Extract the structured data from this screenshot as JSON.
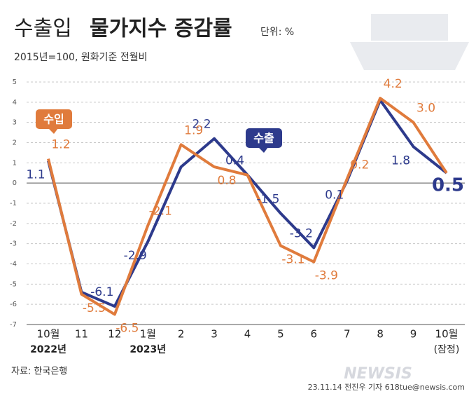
{
  "chart_data": {
    "type": "line",
    "title": [
      "수출입",
      "물가지수 증감률"
    ],
    "unit": "단위: %",
    "subtitle": "2015년=100, 원화기준 전월비",
    "categories": [
      "10월",
      "11",
      "12",
      "1월",
      "2",
      "3",
      "4",
      "5",
      "6",
      "7",
      "8",
      "9",
      "10월"
    ],
    "category_notes": [
      "2022년",
      null,
      null,
      "2023년",
      null,
      null,
      null,
      null,
      null,
      null,
      null,
      null,
      "(잠정)"
    ],
    "series": [
      {
        "name": "수출",
        "color": "#2d3a8c",
        "values": [
          1.1,
          -5.4,
          -6.1,
          -2.9,
          0.8,
          2.2,
          0.4,
          -1.5,
          -3.2,
          0.1,
          4.1,
          1.8,
          0.5
        ],
        "value_labels": [
          "1.1",
          null,
          "-6.1",
          "-2.9",
          null,
          "2.2",
          "0.4",
          "-1.5",
          "-3.2",
          "0.1",
          null,
          "1.8",
          "0.5"
        ]
      },
      {
        "name": "수입",
        "color": "#e07b3c",
        "values": [
          1.2,
          -5.5,
          -6.5,
          -2.1,
          1.9,
          0.8,
          0.4,
          -3.1,
          -3.9,
          0.2,
          4.2,
          3.0,
          0.5
        ],
        "value_labels": [
          "1.2",
          "-5.5",
          "-6.5",
          "-2.1",
          "1.9",
          "0.8",
          null,
          "-3.1",
          "-3.9",
          "0.2",
          "4.2",
          "3.0",
          null
        ]
      }
    ],
    "ylim": [
      -7,
      5
    ],
    "yticks": [
      -7,
      -6,
      -5,
      -4,
      -3,
      -2,
      -1,
      0,
      1,
      2,
      3,
      4,
      5
    ],
    "grid": true,
    "source": "자료: 한국은행",
    "credit": "23.11.14 전진우 기자 618tue@newsis.com",
    "watermark": "NEWSIS"
  }
}
